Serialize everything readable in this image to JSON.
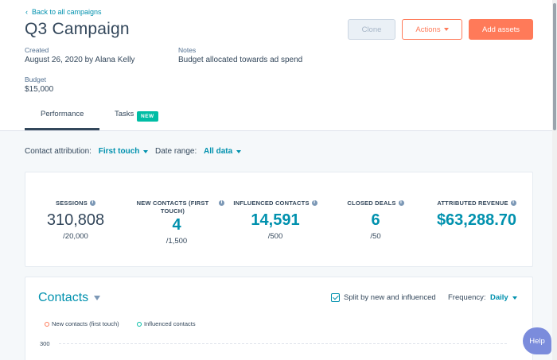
{
  "header": {
    "back_link": "Back to all campaigns",
    "title": "Q3 Campaign",
    "created_label": "Created",
    "created_value": "August 26, 2020 by Alana Kelly",
    "notes_label": "Notes",
    "notes_value": "Budget allocated towards ad spend",
    "budget_label": "Budget",
    "budget_value": "$15,000"
  },
  "buttons": {
    "clone": "Clone",
    "actions": "Actions",
    "add_assets": "Add assets"
  },
  "tabs": [
    {
      "label": "Performance",
      "active": true
    },
    {
      "label": "Tasks",
      "badge": "NEW"
    }
  ],
  "filters": {
    "attribution_label": "Contact attribution:",
    "attribution_value": "First touch",
    "date_label": "Date range:",
    "date_value": "All data"
  },
  "metrics": [
    {
      "label": "SESSIONS",
      "value": "310,808",
      "goal": "/20,000"
    },
    {
      "label": "NEW CONTACTS (FIRST TOUCH)",
      "value": "4",
      "goal": "/1,500"
    },
    {
      "label": "INFLUENCED CONTACTS",
      "value": "14,591",
      "goal": "/500"
    },
    {
      "label": "CLOSED DEALS",
      "value": "6",
      "goal": "/50"
    },
    {
      "label": "ATTRIBUTED REVENUE",
      "value": "$63,288.70",
      "goal": ""
    }
  ],
  "contacts": {
    "title": "Contacts",
    "split_label": "Split by new and influenced",
    "split_checked": true,
    "frequency_label": "Frequency:",
    "frequency_value": "Daily",
    "legend": [
      "New contacts (first touch)",
      "Influenced contacts"
    ],
    "y_tick": "300"
  },
  "help": "Help",
  "colors": {
    "accent": "#ff7a59",
    "teal": "#0091ae",
    "badge": "#00bda5",
    "help": "#7b8cdc"
  }
}
